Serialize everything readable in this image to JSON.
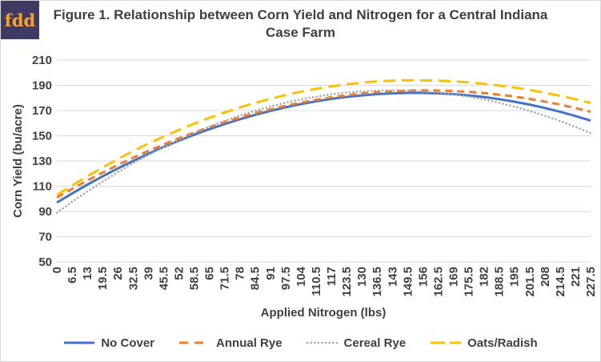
{
  "logo": {
    "text": "fdd",
    "bg_color": "#3d3a63",
    "text_color": "#f7a228"
  },
  "title": "Figure 1. Relationship between Corn Yield and Nitrogen for a Central Indiana Case Farm",
  "chart_data": {
    "type": "line",
    "title": "Figure 1. Relationship between Corn Yield and Nitrogen for a Central Indiana Case Farm",
    "xlabel": "Applied Nitrogen (lbs)",
    "ylabel": "Corn Yield  (bu/acre)",
    "ylim": [
      50,
      210
    ],
    "yticks": [
      210,
      190,
      170,
      150,
      130,
      110,
      90,
      70,
      50
    ],
    "grid": "horizontal",
    "gridline_color": "#d9d9d9",
    "legend_position": "bottom",
    "x": [
      0,
      6.5,
      13,
      19.5,
      26,
      32.5,
      39,
      45.5,
      52,
      58.5,
      65,
      71.5,
      78,
      84.5,
      91,
      97.5,
      104,
      110.5,
      117,
      123.5,
      130,
      136.5,
      143,
      149.5,
      156,
      162.5,
      169,
      175.5,
      182,
      188.5,
      195,
      201.5,
      208,
      214.5,
      221,
      227.5
    ],
    "series": [
      {
        "name": "No Cover",
        "color": "#4472C4",
        "style": "solid",
        "values": [
          97,
          104.2,
          111.2,
          117.8,
          124.1,
          130,
          135.7,
          141.1,
          146.1,
          150.8,
          155.2,
          159.3,
          163.1,
          166.6,
          169.7,
          172.6,
          175.1,
          177.3,
          179.2,
          180.8,
          182,
          183,
          183.6,
          184,
          184,
          183.6,
          183,
          182,
          180.7,
          179,
          177,
          174.7,
          172,
          169,
          165.7,
          162
        ]
      },
      {
        "name": "Annual Rye",
        "color": "#ED7D31",
        "style": "dashed",
        "values": [
          101,
          107.9,
          114.5,
          120.8,
          126.8,
          132.6,
          138,
          143.1,
          148,
          152.5,
          156.8,
          160.8,
          164.5,
          167.9,
          171,
          173.8,
          176.3,
          178.5,
          180.5,
          182.1,
          183.5,
          184.6,
          185.3,
          185.8,
          186,
          185.9,
          185.5,
          184.8,
          183.9,
          182.6,
          181.1,
          179.2,
          177.1,
          174.7,
          172,
          169
        ]
      },
      {
        "name": "Cereal Rye",
        "color": "#A5A5A5",
        "style": "dotted",
        "values": [
          89,
          97.6,
          105.8,
          113.6,
          121.1,
          128.1,
          134.7,
          140.9,
          146.7,
          152.1,
          157.1,
          161.8,
          166,
          169.8,
          173.2,
          176.2,
          178.8,
          181,
          182.8,
          184.2,
          185.2,
          185.8,
          186,
          185.8,
          185.2,
          184.2,
          182.8,
          181,
          178.8,
          176.1,
          173.1,
          169.7,
          165.9,
          161.7,
          157,
          152
        ]
      },
      {
        "name": "Oats/Radish",
        "color": "#FFC000",
        "style": "long-dash",
        "values": [
          103,
          110.6,
          117.9,
          124.8,
          131.5,
          137.8,
          143.7,
          149.3,
          154.6,
          159.6,
          164.2,
          168.5,
          172.4,
          176.1,
          179.3,
          182.3,
          184.9,
          187.2,
          189.2,
          190.8,
          192.1,
          193.1,
          193.7,
          194,
          193.9,
          193.7,
          193.1,
          192.3,
          191.2,
          189.8,
          188.2,
          186.3,
          184.1,
          181.7,
          179,
          176
        ]
      }
    ]
  }
}
